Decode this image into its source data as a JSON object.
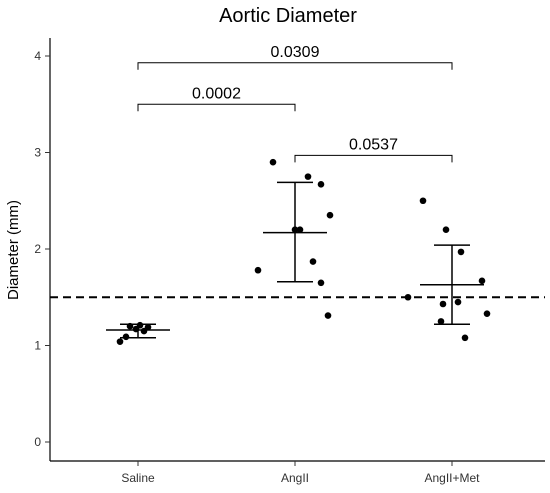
{
  "chart_data": {
    "type": "scatter",
    "title": "Aortic Diameter",
    "xlabel": "",
    "ylabel": "Diameter (mm)",
    "categories": [
      "Saline",
      "AngII",
      "AngII+Met"
    ],
    "ylim": [
      0,
      4.2
    ],
    "yticks": [
      0,
      1,
      2,
      3,
      4
    ],
    "grid": false,
    "legend": "none",
    "reference_line": {
      "y": 1.5,
      "style": "dashed"
    },
    "groups": [
      {
        "category": "Saline",
        "points": [
          {
            "jitter": -0.18,
            "y": 1.04
          },
          {
            "jitter": -0.12,
            "y": 1.09
          },
          {
            "jitter": -0.08,
            "y": 1.2
          },
          {
            "jitter": -0.02,
            "y": 1.17
          },
          {
            "jitter": 0.02,
            "y": 1.21
          },
          {
            "jitter": 0.06,
            "y": 1.15
          },
          {
            "jitter": 0.1,
            "y": 1.19
          }
        ],
        "mean": 1.16,
        "error_low": 1.08,
        "error_high": 1.22
      },
      {
        "category": "AngII",
        "points": [
          {
            "jitter": -0.37,
            "y": 1.78
          },
          {
            "jitter": -0.22,
            "y": 2.9
          },
          {
            "jitter": 0.0,
            "y": 2.2
          },
          {
            "jitter": 0.05,
            "y": 2.2
          },
          {
            "jitter": 0.13,
            "y": 2.75
          },
          {
            "jitter": 0.18,
            "y": 1.87
          },
          {
            "jitter": 0.26,
            "y": 2.67
          },
          {
            "jitter": 0.26,
            "y": 1.65
          },
          {
            "jitter": 0.35,
            "y": 2.35
          },
          {
            "jitter": 0.33,
            "y": 1.31
          }
        ],
        "mean": 2.17,
        "error_low": 1.66,
        "error_high": 2.69
      },
      {
        "category": "AngII+Met",
        "points": [
          {
            "jitter": -0.44,
            "y": 1.5
          },
          {
            "jitter": -0.29,
            "y": 2.5
          },
          {
            "jitter": -0.11,
            "y": 1.25
          },
          {
            "jitter": -0.09,
            "y": 1.43
          },
          {
            "jitter": -0.06,
            "y": 2.2
          },
          {
            "jitter": 0.06,
            "y": 1.45
          },
          {
            "jitter": 0.09,
            "y": 1.97
          },
          {
            "jitter": 0.13,
            "y": 1.08
          },
          {
            "jitter": 0.3,
            "y": 1.67
          },
          {
            "jitter": 0.35,
            "y": 1.33
          }
        ],
        "mean": 1.63,
        "error_low": 1.22,
        "error_high": 2.04
      }
    ],
    "significance": [
      {
        "from": "Saline",
        "to": "AngII",
        "label": "0.0002",
        "y": 3.5
      },
      {
        "from": "AngII",
        "to": "AngII+Met",
        "label": "0.0537",
        "y": 2.97
      },
      {
        "from": "Saline",
        "to": "AngII+Met",
        "label": "0.0309",
        "y": 3.93
      }
    ]
  }
}
